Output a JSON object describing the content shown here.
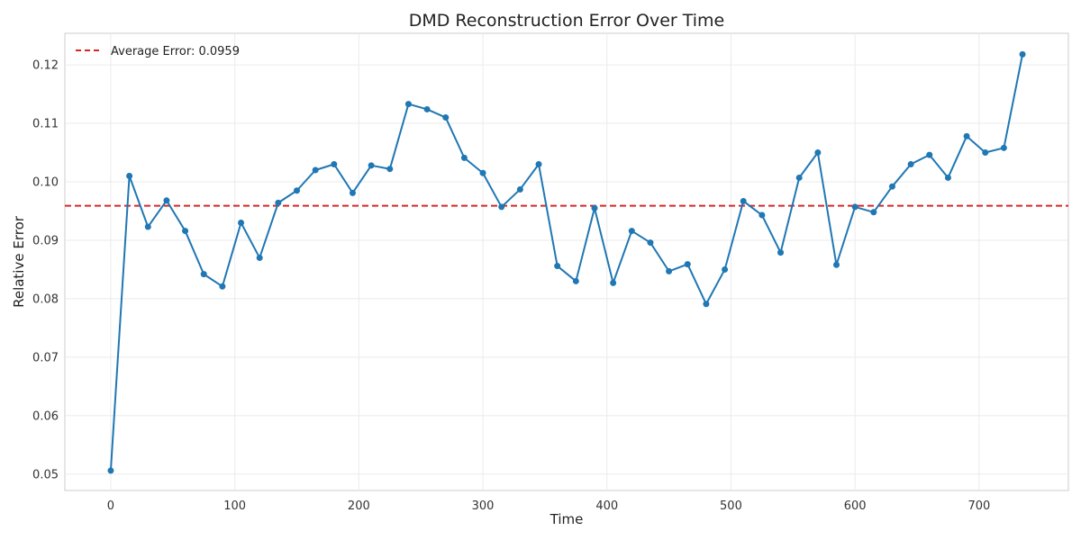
{
  "chart_data": {
    "type": "line",
    "title": "DMD Reconstruction Error Over Time",
    "xlabel": "Time",
    "ylabel": "Relative Error",
    "xlim": [
      -37,
      772
    ],
    "ylim": [
      0.0472,
      0.1254
    ],
    "x_ticks": [
      0,
      100,
      200,
      300,
      400,
      500,
      600,
      700
    ],
    "y_ticks": [
      0.05,
      0.06,
      0.07,
      0.08,
      0.09,
      0.1,
      0.11,
      0.12
    ],
    "y_tick_labels": [
      "0.05",
      "0.06",
      "0.07",
      "0.08",
      "0.09",
      "0.10",
      "0.11",
      "0.12"
    ],
    "grid": true,
    "legend_position": "top-left",
    "series": [
      {
        "x": [
          0,
          15,
          30,
          45,
          60,
          75,
          90,
          105,
          120,
          135,
          150,
          165,
          180,
          195,
          210,
          225,
          240,
          255,
          270,
          285,
          300,
          315,
          330,
          345,
          360,
          375,
          390,
          405,
          420,
          435,
          450,
          465,
          480,
          495,
          510,
          525,
          540,
          555,
          570,
          585,
          600,
          615,
          630,
          645,
          660,
          675,
          690,
          705,
          720,
          735
        ],
        "values": [
          0.0506,
          0.101,
          0.0923,
          0.0968,
          0.0916,
          0.0842,
          0.0821,
          0.093,
          0.087,
          0.0964,
          0.0985,
          0.102,
          0.103,
          0.0981,
          0.1028,
          0.1022,
          0.1133,
          0.1124,
          0.111,
          0.1041,
          0.1015,
          0.0957,
          0.0987,
          0.103,
          0.0856,
          0.083,
          0.0955,
          0.0827,
          0.0916,
          0.0896,
          0.0847,
          0.0859,
          0.0791,
          0.085,
          0.0967,
          0.0943,
          0.0879,
          0.1007,
          0.105,
          0.0858,
          0.0957,
          0.0948,
          0.0992,
          0.103,
          0.1046,
          0.1007,
          0.1078,
          0.105,
          0.1058,
          0.1218
        ],
        "color": "#1f77b4"
      }
    ],
    "reference_line": {
      "label": "Average Error: 0.0959",
      "value": 0.0959,
      "color": "#d62728",
      "style": "dashed"
    }
  }
}
